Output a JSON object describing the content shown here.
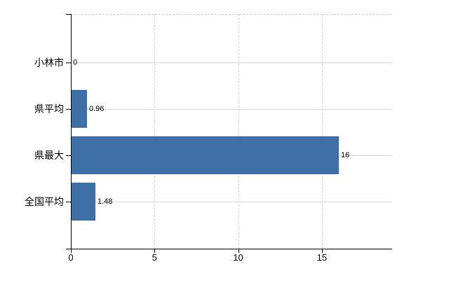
{
  "chart_data": {
    "type": "bar",
    "orientation": "horizontal",
    "title": "",
    "xlabel": "",
    "ylabel": "",
    "categories": [
      "小林市",
      "県平均",
      "県最大",
      "全国平均"
    ],
    "values": [
      0,
      0.96,
      16,
      1.48
    ],
    "value_labels": [
      "0",
      "0.96",
      "16",
      "1.48"
    ],
    "x_ticks": [
      0,
      5,
      10,
      15
    ],
    "xlim": [
      0,
      19.2
    ],
    "grid": true,
    "legend": "none",
    "colors": {
      "bar": "#3e6fa6",
      "axis": "#000000",
      "grid_solid": "#d3dad2",
      "grid_dashed": "#d2d2d2",
      "text": "#000000",
      "background": "#ffffff"
    }
  }
}
